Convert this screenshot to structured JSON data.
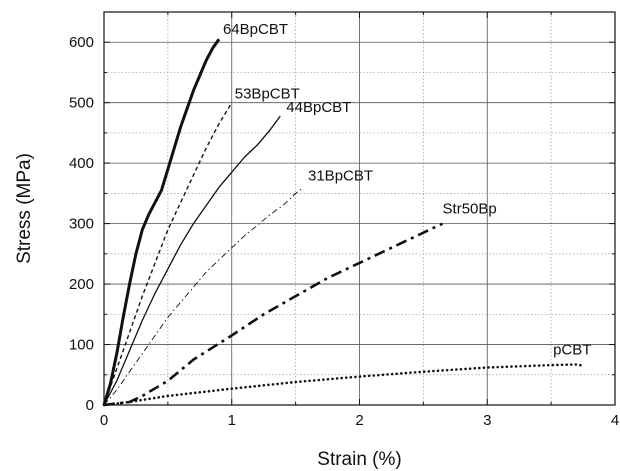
{
  "chart_data": {
    "type": "line",
    "xlabel": "Strain (%)",
    "ylabel": "Stress (MPa)",
    "xlim": [
      0,
      4
    ],
    "ylim": [
      0,
      650
    ],
    "x_ticks": [
      0,
      1,
      2,
      3,
      4
    ],
    "y_ticks": [
      0,
      100,
      200,
      300,
      400,
      500,
      600
    ],
    "x_tick_labels": [
      "0",
      "1",
      "2",
      "3",
      "4"
    ],
    "y_tick_labels": [
      "0",
      "100",
      "200",
      "300",
      "400",
      "500",
      "600"
    ],
    "grid": true,
    "series": [
      {
        "name": "64BpCBT",
        "style": "solid-thick",
        "x": [
          0,
          0.05,
          0.1,
          0.15,
          0.2,
          0.25,
          0.3,
          0.35,
          0.4,
          0.45,
          0.5,
          0.55,
          0.6,
          0.65,
          0.7,
          0.75,
          0.8,
          0.85,
          0.9
        ],
        "y": [
          0,
          35,
          85,
          145,
          200,
          250,
          290,
          315,
          335,
          355,
          390,
          425,
          460,
          490,
          520,
          545,
          570,
          590,
          605
        ]
      },
      {
        "name": "53BpCBT",
        "style": "dashed",
        "x": [
          0,
          0.1,
          0.2,
          0.3,
          0.4,
          0.5,
          0.6,
          0.7,
          0.8,
          0.9,
          1.0
        ],
        "y": [
          0,
          60,
          120,
          180,
          235,
          290,
          335,
          380,
          425,
          465,
          500
        ]
      },
      {
        "name": "44BpCBT",
        "style": "solid-thin",
        "x": [
          0,
          0.1,
          0.2,
          0.3,
          0.4,
          0.5,
          0.6,
          0.7,
          0.8,
          0.9,
          1.0,
          1.1,
          1.2,
          1.3,
          1.38
        ],
        "y": [
          0,
          40,
          90,
          140,
          185,
          225,
          265,
          300,
          330,
          360,
          385,
          410,
          430,
          455,
          478
        ]
      },
      {
        "name": "31BpCBT",
        "style": "dash-dot-thin",
        "x": [
          0,
          0.1,
          0.2,
          0.3,
          0.4,
          0.5,
          0.6,
          0.7,
          0.8,
          0.9,
          1.0,
          1.1,
          1.2,
          1.3,
          1.4,
          1.5,
          1.55
        ],
        "y": [
          0,
          25,
          55,
          85,
          115,
          145,
          170,
          195,
          220,
          240,
          260,
          280,
          297,
          315,
          330,
          350,
          358
        ]
      },
      {
        "name": "Str50Bp",
        "style": "dash-dot-thick",
        "x": [
          0,
          0.2,
          0.3,
          0.5,
          0.7,
          1.0,
          1.25,
          1.5,
          1.75,
          2.0,
          2.25,
          2.5,
          2.65
        ],
        "y": [
          0,
          5,
          15,
          40,
          75,
          115,
          150,
          180,
          210,
          235,
          260,
          285,
          300
        ]
      },
      {
        "name": "pCBT",
        "style": "dotted",
        "x": [
          0,
          0.2,
          0.5,
          1.0,
          1.5,
          2.0,
          2.5,
          3.0,
          3.5,
          3.7,
          3.75
        ],
        "y": [
          0,
          5,
          15,
          27,
          38,
          47,
          55,
          62,
          66,
          67,
          65
        ]
      }
    ]
  }
}
